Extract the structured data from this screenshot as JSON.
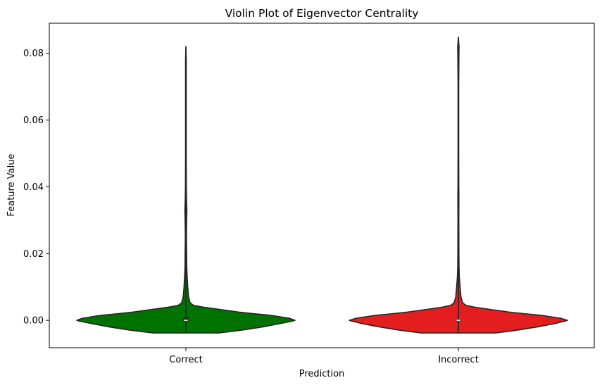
{
  "chart_data": {
    "type": "violin",
    "title": "Violin Plot of Eigenvector Centrality",
    "xlabel": "Prediction",
    "ylabel": "Feature Value",
    "ylim": [
      -0.0082,
      0.089
    ],
    "yticks": [
      0.0,
      0.02,
      0.04,
      0.06,
      0.08
    ],
    "ytick_labels": [
      "0.00",
      "0.02",
      "0.04",
      "0.06",
      "0.08"
    ],
    "categories": [
      "Correct",
      "Incorrect"
    ],
    "grid": false,
    "series": [
      {
        "category": "Correct",
        "color": "#007200",
        "min": -0.0038,
        "max": 0.082,
        "q1": -0.0002,
        "median": 0.0,
        "q3": 0.0008,
        "profile": [
          [
            -0.0038,
            0.3
          ],
          [
            -0.003,
            0.5
          ],
          [
            -0.002,
            0.7
          ],
          [
            -0.001,
            0.86
          ],
          [
            -0.0002,
            0.98
          ],
          [
            0.0,
            1.0
          ],
          [
            0.0006,
            0.95
          ],
          [
            0.0015,
            0.78
          ],
          [
            0.002,
            0.62
          ],
          [
            0.0025,
            0.48
          ],
          [
            0.003,
            0.37
          ],
          [
            0.0035,
            0.26
          ],
          [
            0.004,
            0.15
          ],
          [
            0.0045,
            0.07
          ],
          [
            0.0052,
            0.04
          ],
          [
            0.007,
            0.025
          ],
          [
            0.01,
            0.017
          ],
          [
            0.013,
            0.012
          ],
          [
            0.016,
            0.008
          ],
          [
            0.02,
            0.007
          ],
          [
            0.025,
            0.005
          ],
          [
            0.03,
            0.007
          ],
          [
            0.033,
            0.009
          ],
          [
            0.036,
            0.006
          ],
          [
            0.04,
            0.004
          ],
          [
            0.05,
            0.003
          ],
          [
            0.06,
            0.003
          ],
          [
            0.07,
            0.003
          ],
          [
            0.078,
            0.003
          ],
          [
            0.082,
            0.0
          ]
        ]
      },
      {
        "category": "Incorrect",
        "color": "#e41e1e",
        "min": -0.0038,
        "max": 0.0848,
        "q1": -0.0001,
        "median": 0.0,
        "q3": 0.0002,
        "profile": [
          [
            -0.0038,
            0.34
          ],
          [
            -0.003,
            0.53
          ],
          [
            -0.002,
            0.72
          ],
          [
            -0.001,
            0.88
          ],
          [
            -0.0002,
            0.98
          ],
          [
            0.0,
            1.0
          ],
          [
            0.0006,
            0.94
          ],
          [
            0.0015,
            0.76
          ],
          [
            0.002,
            0.6
          ],
          [
            0.0025,
            0.46
          ],
          [
            0.003,
            0.35
          ],
          [
            0.0035,
            0.24
          ],
          [
            0.004,
            0.14
          ],
          [
            0.0045,
            0.07
          ],
          [
            0.0052,
            0.04
          ],
          [
            0.007,
            0.024
          ],
          [
            0.01,
            0.016
          ],
          [
            0.013,
            0.009
          ],
          [
            0.016,
            0.006
          ],
          [
            0.02,
            0.005
          ],
          [
            0.03,
            0.004
          ],
          [
            0.037,
            0.005
          ],
          [
            0.04,
            0.004
          ],
          [
            0.05,
            0.003
          ],
          [
            0.06,
            0.003
          ],
          [
            0.07,
            0.003
          ],
          [
            0.079,
            0.005
          ],
          [
            0.082,
            0.006
          ],
          [
            0.0848,
            0.0
          ]
        ]
      }
    ]
  }
}
